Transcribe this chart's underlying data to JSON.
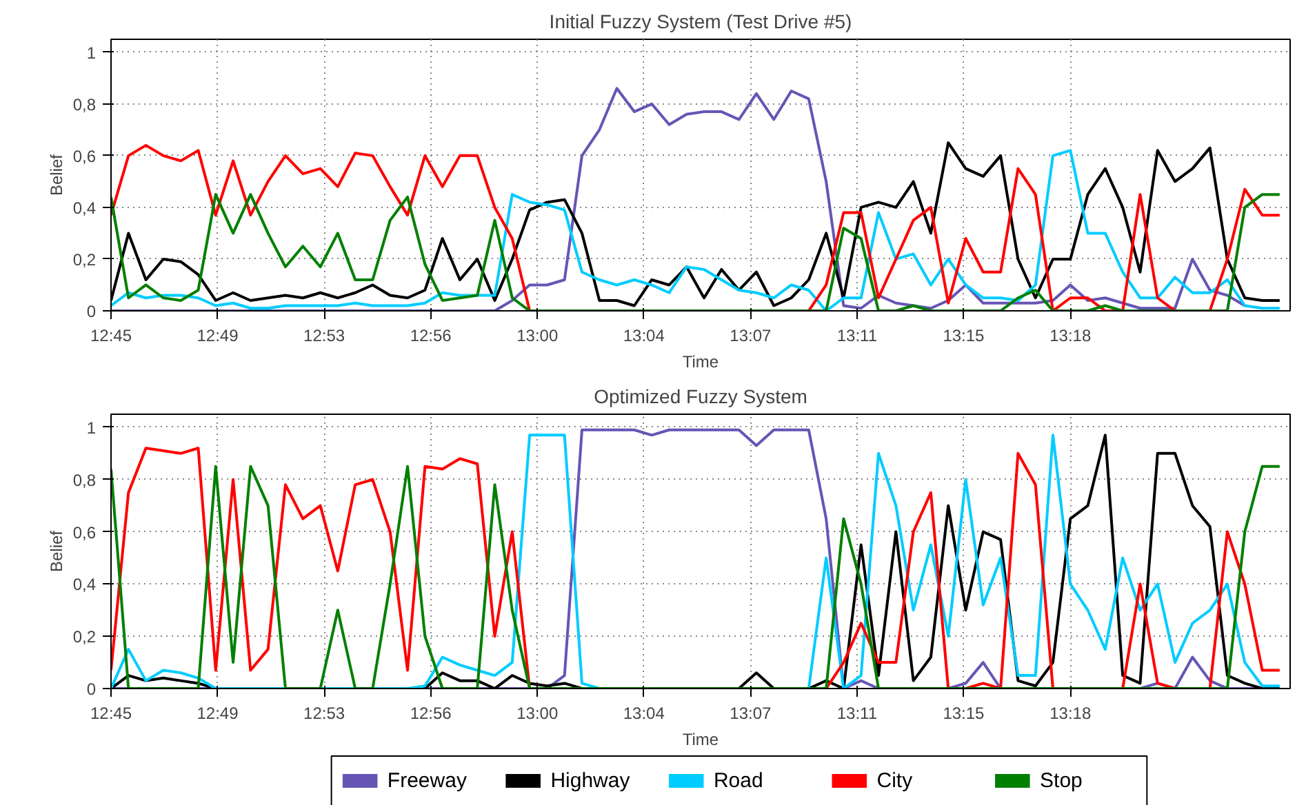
{
  "chart_data": [
    {
      "type": "line",
      "title": "Initial Fuzzy System (Test Drive #5)",
      "xlabel": "Time",
      "ylabel": "Belief",
      "grid": true,
      "line_style": "solid",
      "xlim": [
        12.7556,
        13.4316
      ],
      "ylim": [
        0,
        1.05
      ],
      "xticks": [
        {
          "value": 12.7556,
          "label": "12:45"
        },
        {
          "value": 12.8167,
          "label": "12:49"
        },
        {
          "value": 12.8778,
          "label": "12:53"
        },
        {
          "value": 12.9389,
          "label": "12:56"
        },
        {
          "value": 13.0,
          "label": "13:00"
        },
        {
          "value": 13.0611,
          "label": "13:04"
        },
        {
          "value": 13.1222,
          "label": "13:07"
        },
        {
          "value": 13.1833,
          "label": "13:11"
        },
        {
          "value": 13.2444,
          "label": "13:15"
        },
        {
          "value": 13.3056,
          "label": "13:18"
        }
      ],
      "yticks": [
        0,
        {
          "value": 0.2,
          "label": "0,2"
        },
        {
          "value": 0.4,
          "label": "0,4"
        },
        {
          "value": 0.6,
          "label": "0,6"
        },
        {
          "value": 0.8,
          "label": "0,8"
        },
        1
      ],
      "x": [
        12.7556,
        12.7656,
        12.7756,
        12.7856,
        12.7956,
        12.8056,
        12.8156,
        12.8256,
        12.8356,
        12.8456,
        12.8556,
        12.8656,
        12.8756,
        12.8856,
        12.8956,
        12.9056,
        12.9156,
        12.9256,
        12.9356,
        12.9456,
        12.9556,
        12.9656,
        12.9756,
        12.9856,
        12.9956,
        13.0056,
        13.0156,
        13.0256,
        13.0356,
        13.0456,
        13.0556,
        13.0656,
        13.0756,
        13.0856,
        13.0956,
        13.1056,
        13.1156,
        13.1256,
        13.1356,
        13.1456,
        13.1556,
        13.1656,
        13.1756,
        13.1856,
        13.1956,
        13.2056,
        13.2156,
        13.2256,
        13.2356,
        13.2456,
        13.2556,
        13.2656,
        13.2756,
        13.2856,
        13.2956,
        13.3056,
        13.3156,
        13.3256,
        13.3356,
        13.3456,
        13.3556,
        13.3656,
        13.3756,
        13.3856,
        13.3956,
        13.4056,
        13.4156,
        13.4256
      ],
      "series": [
        {
          "color": "#6655b5",
          "x": [
            12.7556,
            12.7656,
            12.7756,
            12.7856,
            12.7956,
            12.8056,
            12.8156,
            12.8256,
            12.8356,
            12.8456,
            12.8556,
            12.8656,
            12.8756,
            12.8856,
            12.8956,
            12.9056,
            12.9156,
            12.9256,
            12.9356,
            12.9456,
            12.9556,
            12.9656,
            12.9756,
            12.9856,
            12.9956,
            13.0056,
            13.0156,
            13.0256,
            13.0356,
            13.0456,
            13.0556,
            13.0656,
            13.0756,
            13.0856,
            13.0956,
            13.1056,
            13.1156,
            13.1256,
            13.1356,
            13.1456,
            13.1556,
            13.1656,
            13.1756,
            13.1856,
            13.1956,
            13.2056,
            13.2156,
            13.2256,
            13.2356,
            13.2456,
            13.2556,
            13.2656,
            13.2756,
            13.2856,
            13.2956,
            13.3056,
            13.3156,
            13.3256,
            13.3356,
            13.3456,
            13.3556,
            13.3656,
            13.3756,
            13.3856,
            13.3956,
            13.4056
          ],
          "values": [
            0,
            0,
            0,
            0,
            0,
            0,
            0,
            0,
            0,
            0,
            0,
            0,
            0,
            0,
            0,
            0,
            0,
            0,
            0,
            0,
            0,
            0,
            0,
            0.04,
            0.1,
            0.1,
            0.12,
            0.6,
            0.7,
            0.86,
            0.77,
            0.8,
            0.72,
            0.76,
            0.77,
            0.77,
            0.74,
            0.84,
            0.74,
            0.85,
            0.82,
            0.5,
            0.02,
            0.01,
            0.06,
            0.03,
            0.02,
            0.01,
            0.04,
            0.1,
            0.03,
            0.03,
            0.03,
            0.03,
            0.04,
            0.1,
            0.04,
            0.05,
            0.03,
            0.01,
            0.01,
            0.01,
            0.2,
            0.08,
            0.06,
            0.02
          ]
        },
        {
          "color": "#000000",
          "values": [
            0.04,
            0.3,
            0.12,
            0.2,
            0.19,
            0.14,
            0.04,
            0.07,
            0.04,
            0.05,
            0.06,
            0.05,
            0.07,
            0.05,
            0.07,
            0.1,
            0.06,
            0.05,
            0.08,
            0.28,
            0.12,
            0.2,
            0.04,
            0.2,
            0.39,
            0.42,
            0.43,
            0.3,
            0.04,
            0.04,
            0.02,
            0.12,
            0.1,
            0.17,
            0.05,
            0.16,
            0.08,
            0.15,
            0.02,
            0.05,
            0.12,
            0.3,
            0.05,
            0.4,
            0.42,
            0.4,
            0.5,
            0.3,
            0.65,
            0.55,
            0.52,
            0.6,
            0.2,
            0.05,
            0.2,
            0.2,
            0.45,
            0.55,
            0.4,
            0.15,
            0.62,
            0.5,
            0.55,
            0.63,
            0.2,
            0.05,
            0.04,
            0.04
          ]
        },
        {
          "color": "#00ccff",
          "values": [
            0.02,
            0.07,
            0.05,
            0.06,
            0.06,
            0.05,
            0.02,
            0.03,
            0.01,
            0.01,
            0.02,
            0.02,
            0.02,
            0.02,
            0.03,
            0.02,
            0.02,
            0.02,
            0.03,
            0.07,
            0.06,
            0.06,
            0.06,
            0.45,
            0.42,
            0.41,
            0.39,
            0.15,
            0.12,
            0.1,
            0.12,
            0.1,
            0.07,
            0.17,
            0.16,
            0.12,
            0.08,
            0.07,
            0.05,
            0.1,
            0.08,
            0,
            0.05,
            0.05,
            0.38,
            0.2,
            0.22,
            0.1,
            0.2,
            0.1,
            0.05,
            0.05,
            0.04,
            0.1,
            0.6,
            0.62,
            0.3,
            0.3,
            0.15,
            0.05,
            0.05,
            0.13,
            0.07,
            0.07,
            0.12,
            0.02,
            0.01,
            0.01
          ]
        },
        {
          "color": "#ff0000",
          "values": [
            0.37,
            0.6,
            0.64,
            0.6,
            0.58,
            0.62,
            0.37,
            0.58,
            0.37,
            0.5,
            0.6,
            0.53,
            0.55,
            0.48,
            0.61,
            0.6,
            0.48,
            0.37,
            0.6,
            0.48,
            0.6,
            0.6,
            0.4,
            0.28,
            0,
            0,
            0,
            0,
            0,
            0,
            0,
            0,
            0,
            0,
            0,
            0,
            0,
            0,
            0,
            0,
            0,
            0.1,
            0.38,
            0.38,
            0.05,
            0.2,
            0.35,
            0.4,
            0.03,
            0.28,
            0.15,
            0.15,
            0.55,
            0.45,
            0,
            0.05,
            0.05,
            0,
            0,
            0.45,
            0.05,
            0,
            0,
            0,
            0.2,
            0.47,
            0.37,
            0.37
          ]
        },
        {
          "color": "#008000",
          "values": [
            0.44,
            0.05,
            0.1,
            0.05,
            0.04,
            0.08,
            0.45,
            0.3,
            0.45,
            0.3,
            0.17,
            0.25,
            0.17,
            0.3,
            0.12,
            0.12,
            0.35,
            0.44,
            0.18,
            0.04,
            0.05,
            0.06,
            0.35,
            0.05,
            0,
            0,
            0,
            0,
            0,
            0,
            0,
            0,
            0,
            0,
            0,
            0,
            0,
            0,
            0,
            0,
            0,
            0,
            0.32,
            0.28,
            0,
            0,
            0.02,
            0,
            0,
            0,
            0,
            0,
            0.05,
            0.08,
            0,
            0,
            0,
            0.02,
            0,
            0,
            0,
            0,
            0,
            0,
            0,
            0.4,
            0.45,
            0.45
          ]
        }
      ]
    },
    {
      "type": "line",
      "title": "Optimized Fuzzy System",
      "xlabel": "Time",
      "ylabel": "Belief",
      "grid": true,
      "line_style": "solid",
      "legend": "bottom",
      "xlim": [
        12.7556,
        13.4316
      ],
      "ylim": [
        0,
        1.05
      ],
      "xticks": [
        {
          "value": 12.7556,
          "label": "12:45"
        },
        {
          "value": 12.8167,
          "label": "12:49"
        },
        {
          "value": 12.8778,
          "label": "12:53"
        },
        {
          "value": 12.9389,
          "label": "12:56"
        },
        {
          "value": 13.0,
          "label": "13:00"
        },
        {
          "value": 13.0611,
          "label": "13:04"
        },
        {
          "value": 13.1222,
          "label": "13:07"
        },
        {
          "value": 13.1833,
          "label": "13:11"
        },
        {
          "value": 13.2444,
          "label": "13:15"
        },
        {
          "value": 13.3056,
          "label": "13:18"
        }
      ],
      "yticks": [
        0,
        {
          "value": 0.2,
          "label": "0,2"
        },
        {
          "value": 0.4,
          "label": "0,4"
        },
        {
          "value": 0.6,
          "label": "0,6"
        },
        {
          "value": 0.8,
          "label": "0,8"
        },
        1
      ],
      "x": [
        12.7556,
        12.7656,
        12.7756,
        12.7856,
        12.7956,
        12.8056,
        12.8156,
        12.8256,
        12.8356,
        12.8456,
        12.8556,
        12.8656,
        12.8756,
        12.8856,
        12.8956,
        12.9056,
        12.9156,
        12.9256,
        12.9356,
        12.9456,
        12.9556,
        12.9656,
        12.9756,
        12.9856,
        12.9956,
        13.0056,
        13.0156,
        13.0256,
        13.0356,
        13.0456,
        13.0556,
        13.0656,
        13.0756,
        13.0856,
        13.0956,
        13.1056,
        13.1156,
        13.1256,
        13.1356,
        13.1456,
        13.1556,
        13.1656,
        13.1756,
        13.1856,
        13.1956,
        13.2056,
        13.2156,
        13.2256,
        13.2356,
        13.2456,
        13.2556,
        13.2656,
        13.2756,
        13.2856,
        13.2956,
        13.3056,
        13.3156,
        13.3256,
        13.3356,
        13.3456,
        13.3556,
        13.3656,
        13.3756,
        13.3856,
        13.3956,
        13.4056,
        13.4156,
        13.4256
      ],
      "series": [
        {
          "name": "Freeway",
          "color": "#6655b5",
          "values": [
            0,
            0,
            0,
            0,
            0,
            0,
            0,
            0,
            0,
            0,
            0,
            0,
            0,
            0,
            0,
            0,
            0,
            0,
            0,
            0,
            0,
            0,
            0,
            0,
            0,
            0,
            0.05,
            0.99,
            0.99,
            0.99,
            0.99,
            0.97,
            0.99,
            0.99,
            0.99,
            0.99,
            0.99,
            0.93,
            0.99,
            0.99,
            0.99,
            0.65,
            0,
            0.03,
            0,
            0,
            0,
            0,
            0,
            0.02,
            0.1,
            0,
            0,
            0,
            0,
            0,
            0,
            0,
            0,
            0,
            0.02,
            0,
            0.12,
            0.03,
            0,
            0,
            0,
            0
          ]
        },
        {
          "name": "Highway",
          "color": "#000000",
          "values": [
            0,
            0.05,
            0.03,
            0.04,
            0.03,
            0.02,
            0,
            0,
            0,
            0,
            0,
            0,
            0,
            0,
            0,
            0,
            0,
            0,
            0,
            0.06,
            0.03,
            0.03,
            0,
            0.05,
            0.02,
            0.01,
            0.02,
            0,
            0,
            0,
            0,
            0,
            0,
            0,
            0,
            0,
            0,
            0.06,
            0,
            0,
            0,
            0.03,
            0,
            0.55,
            0.05,
            0.6,
            0.03,
            0.12,
            0.7,
            0.3,
            0.6,
            0.57,
            0.03,
            0.01,
            0.1,
            0.65,
            0.7,
            0.97,
            0.05,
            0.02,
            0.9,
            0.9,
            0.7,
            0.62,
            0.05,
            0.02,
            0,
            0
          ]
        },
        {
          "name": "Road",
          "color": "#00ccff",
          "values": [
            0,
            0.15,
            0.03,
            0.07,
            0.06,
            0.04,
            0,
            0,
            0,
            0,
            0,
            0,
            0,
            0,
            0,
            0,
            0,
            0,
            0.01,
            0.12,
            0.09,
            0.07,
            0.05,
            0.1,
            0.97,
            0.97,
            0.97,
            0.02,
            0,
            0,
            0,
            0,
            0,
            0,
            0,
            0,
            0,
            0,
            0,
            0,
            0,
            0.5,
            0,
            0.05,
            0.9,
            0.7,
            0.3,
            0.55,
            0.2,
            0.8,
            0.32,
            0.5,
            0.05,
            0.05,
            0.97,
            0.4,
            0.3,
            0.15,
            0.5,
            0.3,
            0.4,
            0.1,
            0.25,
            0.3,
            0.4,
            0.1,
            0.01,
            0.01
          ]
        },
        {
          "name": "City",
          "color": "#ff0000",
          "values": [
            0.07,
            0.75,
            0.92,
            0.91,
            0.9,
            0.92,
            0.07,
            0.8,
            0.07,
            0.15,
            0.78,
            0.65,
            0.7,
            0.45,
            0.78,
            0.8,
            0.6,
            0.07,
            0.85,
            0.84,
            0.88,
            0.86,
            0.2,
            0.6,
            0,
            0,
            0,
            0,
            0,
            0,
            0,
            0,
            0,
            0,
            0,
            0,
            0,
            0,
            0,
            0,
            0,
            0,
            0.1,
            0.25,
            0.1,
            0.1,
            0.6,
            0.75,
            0,
            0,
            0.02,
            0,
            0.9,
            0.78,
            0,
            0,
            0,
            0,
            0,
            0.4,
            0.02,
            0,
            0,
            0,
            0.6,
            0.4,
            0.07,
            0.07
          ]
        },
        {
          "name": "Stop",
          "color": "#008000",
          "values": [
            0.84,
            0,
            0,
            0,
            0,
            0,
            0.85,
            0.1,
            0.85,
            0.7,
            0,
            0,
            0,
            0.3,
            0,
            0,
            0.4,
            0.85,
            0.2,
            0,
            0,
            0,
            0.78,
            0.3,
            0,
            0,
            0,
            0,
            0,
            0,
            0,
            0,
            0,
            0,
            0,
            0,
            0,
            0,
            0,
            0,
            0,
            0,
            0.65,
            0.4,
            0,
            0,
            0,
            0,
            0,
            0,
            0,
            0,
            0,
            0,
            0,
            0,
            0,
            0,
            0,
            0,
            0,
            0,
            0,
            0,
            0,
            0.6,
            0.85,
            0.85
          ]
        }
      ]
    }
  ]
}
